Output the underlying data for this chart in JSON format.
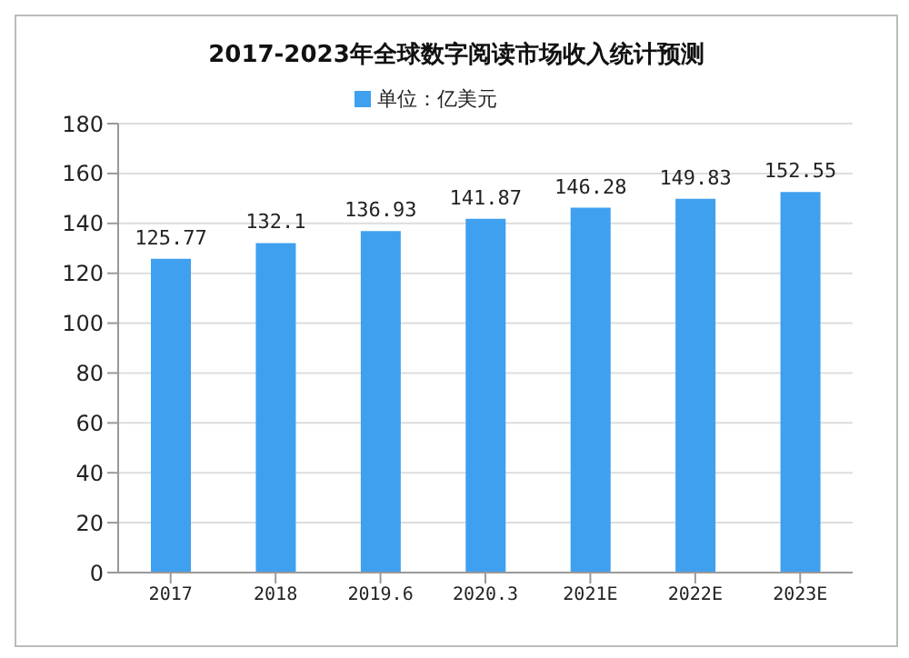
{
  "chart_data": {
    "type": "bar",
    "title": "2017-2023年全球数字阅读市场收入统计预测",
    "categories": [
      "2017",
      "2018",
      "2019.6",
      "2020.3",
      "2021E",
      "2022E",
      "2023E"
    ],
    "series": [
      {
        "name": "单位：亿美元",
        "color": "#3fa0f0",
        "values": [
          125.77,
          132.1,
          136.93,
          141.87,
          146.28,
          149.83,
          152.55
        ]
      }
    ],
    "ylim": [
      0,
      180
    ],
    "yticks": [
      0,
      20,
      40,
      60,
      80,
      100,
      120,
      140,
      160,
      180
    ],
    "grid": "y",
    "legend": "top",
    "data_labels": true
  }
}
